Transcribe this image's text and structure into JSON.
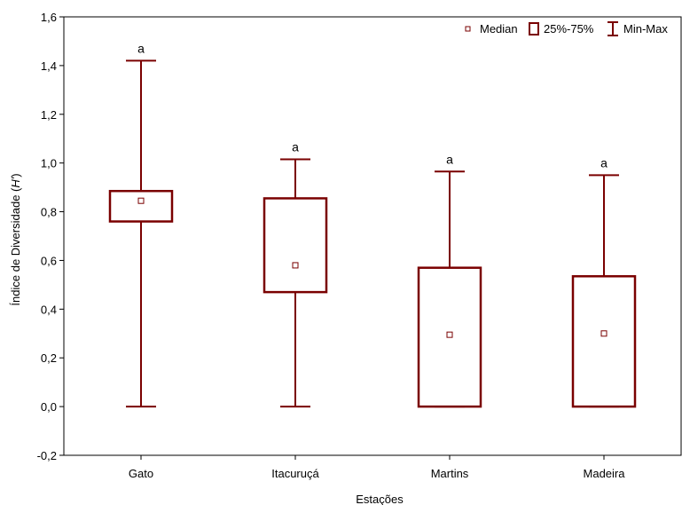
{
  "chart_data": {
    "type": "box",
    "xlabel": "Estações",
    "ylabel_prefix": "Índice de Diversidade (",
    "ylabel_italic": "H'",
    "ylabel_suffix": ")",
    "ylim": [
      -0.2,
      1.6
    ],
    "yticks": [
      -0.2,
      0.0,
      0.2,
      0.4,
      0.6,
      0.8,
      1.0,
      1.2,
      1.4,
      1.6
    ],
    "ytick_labels": [
      "-0,2",
      "0,0",
      "0,2",
      "0,4",
      "0,6",
      "0,8",
      "1,0",
      "1,2",
      "1,4",
      "1,6"
    ],
    "categories": [
      "Gato",
      "Itacuruçá",
      "Martins",
      "Madeira"
    ],
    "boxes": [
      {
        "category": "Gato",
        "min": 0.0,
        "q1": 0.76,
        "median": 0.845,
        "q3": 0.885,
        "max": 1.42,
        "group": "a"
      },
      {
        "category": "Itacuruçá",
        "min": 0.0,
        "q1": 0.47,
        "median": 0.58,
        "q3": 0.855,
        "max": 1.015,
        "group": "a"
      },
      {
        "category": "Martins",
        "min": 0.0,
        "q1": 0.0,
        "median": 0.295,
        "q3": 0.57,
        "max": 0.965,
        "group": "a"
      },
      {
        "category": "Madeira",
        "min": 0.0,
        "q1": 0.0,
        "median": 0.3,
        "q3": 0.535,
        "max": 0.95,
        "group": "a"
      }
    ],
    "legend": {
      "position": "top-right",
      "items": [
        {
          "symbol": "median-square",
          "label": "Median"
        },
        {
          "symbol": "box",
          "label": "25%-75%"
        },
        {
          "symbol": "whisker",
          "label": "Min-Max"
        }
      ]
    },
    "colors": {
      "box": "#7a0000",
      "axis": "#000000",
      "background": "#ffffff"
    },
    "grid": false
  }
}
